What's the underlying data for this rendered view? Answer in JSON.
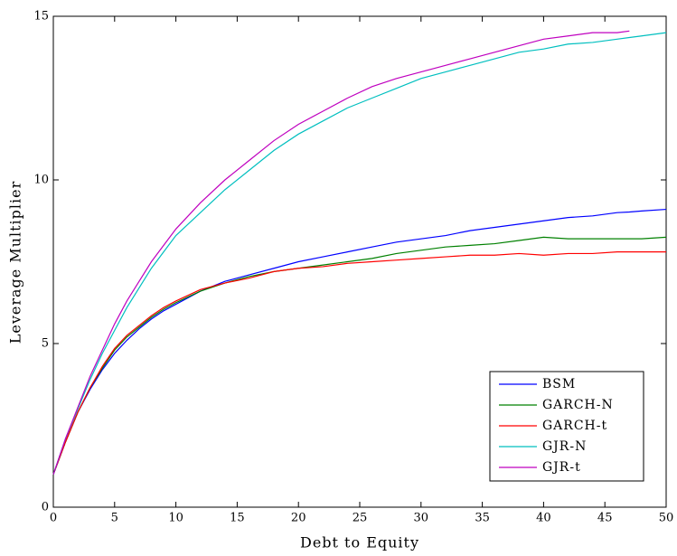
{
  "chart_data": {
    "type": "line",
    "x_label": "Debt to Equity",
    "y_label": "Leverage Multiplier",
    "x": [
      0,
      1,
      2,
      3,
      4,
      5,
      6,
      7,
      8,
      9,
      10,
      12,
      14,
      16,
      18,
      20,
      22,
      24,
      26,
      28,
      30,
      32,
      34,
      36,
      38,
      40,
      42,
      44,
      46,
      47,
      48,
      50
    ],
    "series": [
      {
        "name": "BSM",
        "color": "#0000ff",
        "values": [
          1,
          2.0,
          2.9,
          3.6,
          4.2,
          4.7,
          5.1,
          5.45,
          5.75,
          6.0,
          6.2,
          6.6,
          6.9,
          7.1,
          7.3,
          7.5,
          7.65,
          7.8,
          7.95,
          8.1,
          8.2,
          8.3,
          8.45,
          8.55,
          8.65,
          8.75,
          8.85,
          8.9,
          9.0,
          9.02,
          9.05,
          9.1
        ]
      },
      {
        "name": "GARCH-N",
        "color": "#008000",
        "values": [
          1,
          2.0,
          2.9,
          3.65,
          4.25,
          4.8,
          5.2,
          5.5,
          5.8,
          6.05,
          6.25,
          6.6,
          6.85,
          7.05,
          7.2,
          7.3,
          7.4,
          7.5,
          7.6,
          7.75,
          7.85,
          7.95,
          8.0,
          8.05,
          8.15,
          8.25,
          8.2,
          8.2,
          8.2,
          8.2,
          8.2,
          8.25
        ]
      },
      {
        "name": "GARCH-t",
        "color": "#ff0000",
        "values": [
          1,
          2.0,
          2.9,
          3.65,
          4.3,
          4.85,
          5.25,
          5.55,
          5.85,
          6.1,
          6.3,
          6.65,
          6.85,
          7.0,
          7.2,
          7.3,
          7.35,
          7.45,
          7.5,
          7.55,
          7.6,
          7.65,
          7.7,
          7.7,
          7.75,
          7.7,
          7.75,
          7.75,
          7.8,
          7.8,
          7.8,
          7.8
        ]
      },
      {
        "name": "GJR-N",
        "color": "#00bfbf",
        "values": [
          1,
          2.1,
          3.0,
          3.9,
          4.7,
          5.4,
          6.1,
          6.7,
          7.3,
          7.8,
          8.3,
          9.0,
          9.7,
          10.3,
          10.9,
          11.4,
          11.8,
          12.2,
          12.5,
          12.8,
          13.1,
          13.3,
          13.5,
          13.7,
          13.9,
          14.0,
          14.15,
          14.2,
          14.3,
          14.35,
          14.4,
          14.5
        ]
      },
      {
        "name": "GJR-t",
        "color": "#bf00bf",
        "values": [
          1,
          2.1,
          3.05,
          4.0,
          4.8,
          5.6,
          6.3,
          6.9,
          7.5,
          8.0,
          8.5,
          9.3,
          10.0,
          10.6,
          11.2,
          11.7,
          12.1,
          12.5,
          12.85,
          13.1,
          13.3,
          13.5,
          13.7,
          13.9,
          14.1,
          14.3,
          14.4,
          14.5,
          14.5,
          14.55,
          null,
          null
        ]
      }
    ],
    "xlim": [
      0,
      50
    ],
    "xticks": [
      0,
      5,
      10,
      15,
      20,
      25,
      30,
      35,
      40,
      45,
      50
    ],
    "ylim": [
      0,
      15
    ],
    "yticks": [
      0,
      5,
      10,
      15
    ],
    "legend": "lower right"
  }
}
